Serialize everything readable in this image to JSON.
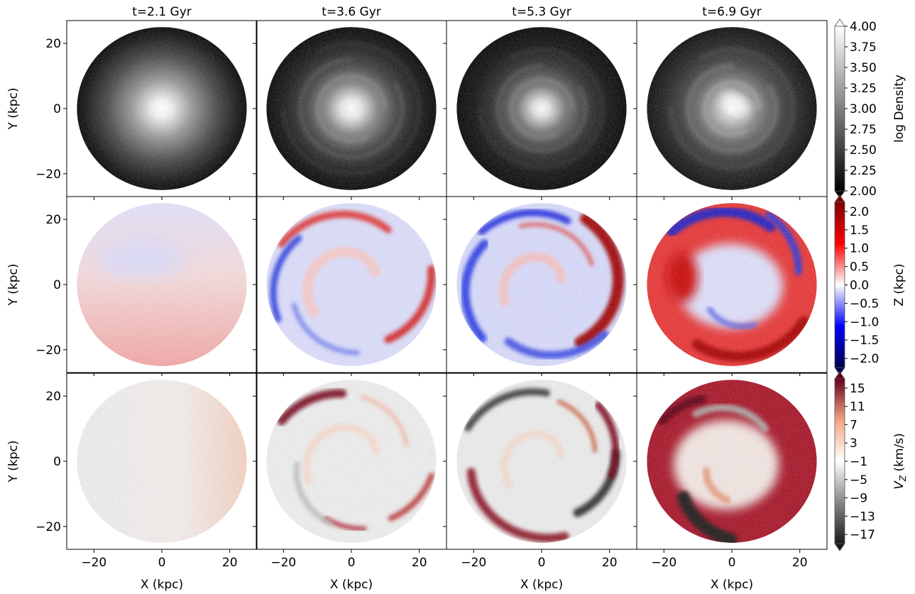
{
  "columns": [
    {
      "title": "t=2.1 Gyr"
    },
    {
      "title": "t=3.6 Gyr"
    },
    {
      "title": "t=5.3 Gyr"
    },
    {
      "title": "t=6.9 Gyr"
    }
  ],
  "rows": [
    {
      "quantity": "density",
      "ylabel": "Y (kpc)",
      "colorbar": {
        "label": "log Density",
        "ticks": [
          "4.00",
          "3.75",
          "3.50",
          "3.25",
          "3.00",
          "2.75",
          "2.50",
          "2.25",
          "2.00"
        ],
        "range": [
          2.0,
          4.0
        ],
        "colormap": "gray",
        "colors": [
          "#000000",
          "#ffffff"
        ]
      }
    },
    {
      "quantity": "Z",
      "ylabel": "Y (kpc)",
      "colorbar": {
        "label": "Z (kpc)",
        "ticks": [
          "2.0",
          "1.5",
          "1.0",
          "0.5",
          "0.0",
          "−0.5",
          "−1.0",
          "−1.5",
          "−2.0"
        ],
        "range": [
          -2.25,
          2.25
        ],
        "colormap": "seismic",
        "colors": [
          "#00004c",
          "#0000ff",
          "#ffffff",
          "#ff0000",
          "#800000"
        ]
      }
    },
    {
      "quantity": "Vz",
      "ylabel": "Y (kpc)",
      "colorbar": {
        "label": "V_Z (km/s)",
        "ticks": [
          "15",
          "11",
          "7",
          "3",
          "−1",
          "−5",
          "−9",
          "−13",
          "−17"
        ],
        "range": [
          -19,
          17
        ],
        "colormap": "RdGy_r",
        "colors": [
          "#1a1a1a",
          "#878787",
          "#ffffff",
          "#f4a582",
          "#67001f"
        ]
      }
    }
  ],
  "xlabel": "X (kpc)",
  "chart_data": {
    "type": "heatmap",
    "description_axes": "Face-on galaxy disk maps, 3 quantities x 4 epochs",
    "x_range": [
      -28,
      28
    ],
    "y_range": [
      -27,
      27
    ],
    "x_ticks": [
      "−20",
      "0",
      "20"
    ],
    "y_ticks": [
      "20",
      "0",
      "−20"
    ],
    "x_tick_values": [
      -20,
      0,
      20
    ],
    "y_tick_values": [
      20,
      0,
      -20
    ],
    "disk_radius_kpc": 25,
    "times_gyr": [
      2.1,
      3.6,
      5.3,
      6.9
    ],
    "quantities": [
      "log Density",
      "Z (kpc)",
      "V_Z (km/s)"
    ]
  }
}
